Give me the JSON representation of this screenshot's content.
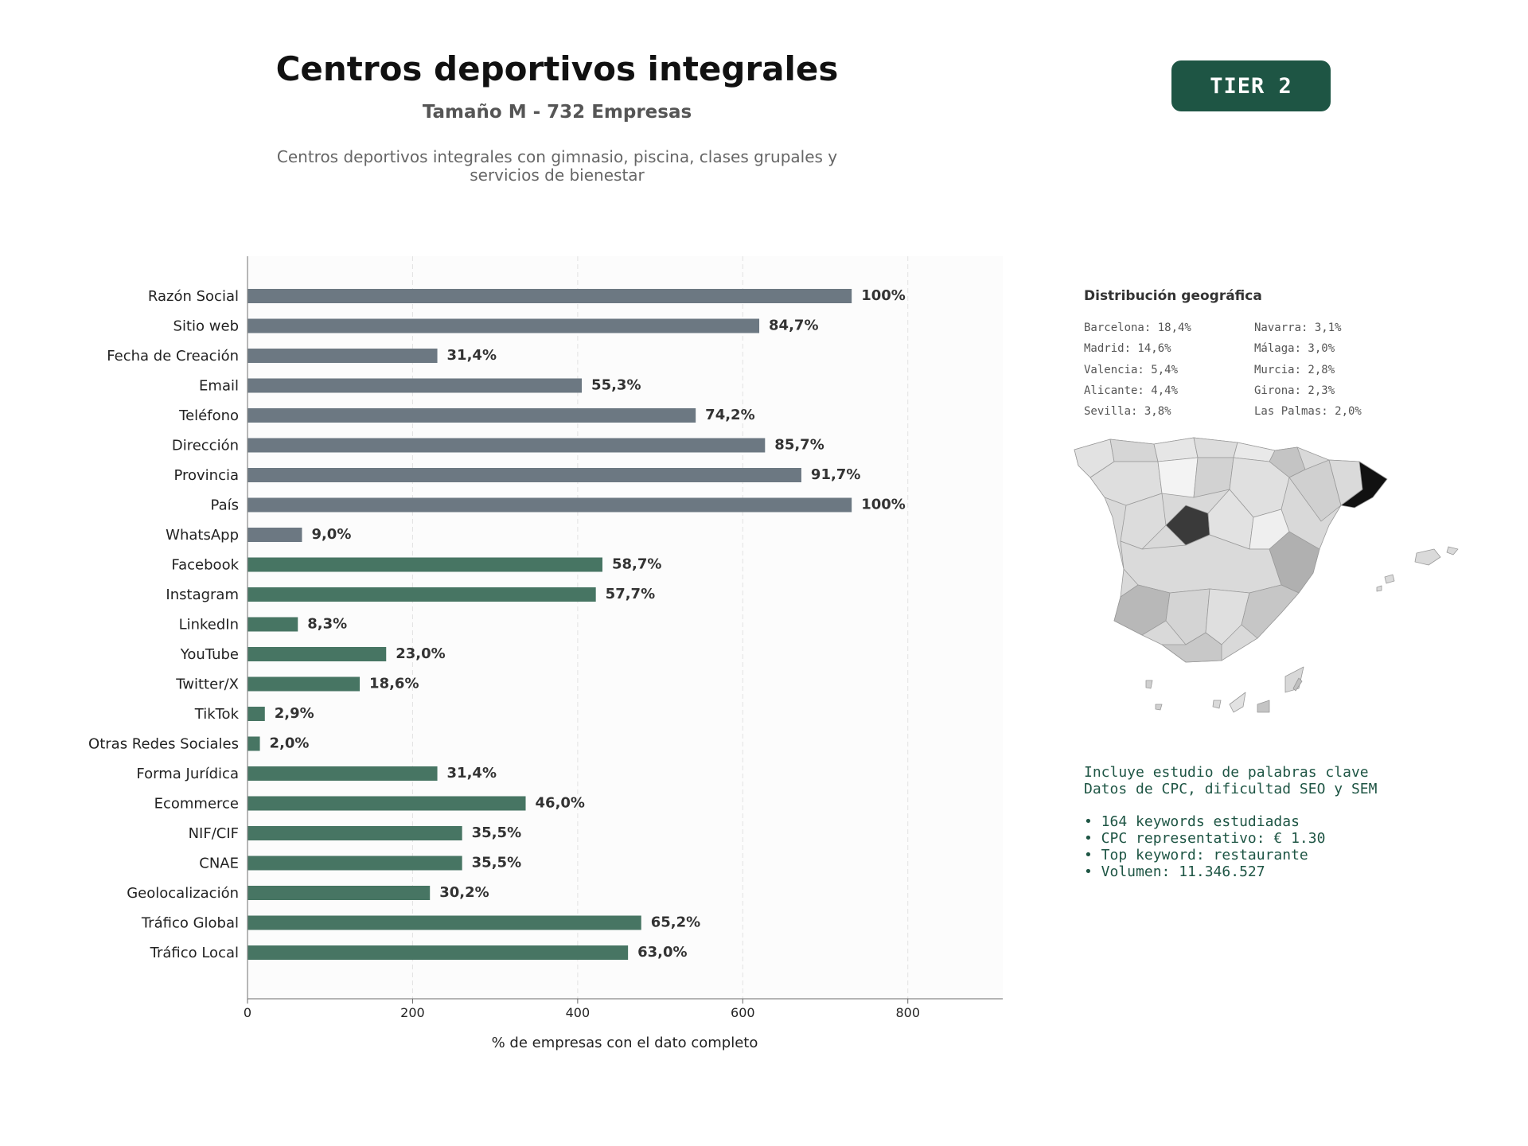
{
  "header": {
    "title": "Centros deportivos integrales",
    "subtitle": "Tamaño M - 732 Empresas",
    "description_line1": "Centros deportivos integrales con gimnasio, piscina, clases grupales y",
    "description_line2": "servicios de bienestar",
    "tier": "TIER 2"
  },
  "colors": {
    "gray_bar": "#6c7882",
    "green_bar": "#477563",
    "accent": "#1e5544"
  },
  "chart_data": {
    "type": "bar",
    "orientation": "horizontal",
    "xlabel": "% de empresas con el dato completo",
    "xlim": [
      0,
      915
    ],
    "xticks": [
      0,
      200,
      400,
      600,
      800
    ],
    "grid": "vertical dashed",
    "categories": [
      "Razón Social",
      "Sitio web",
      "Fecha de Creación",
      "Email",
      "Teléfono",
      "Dirección",
      "Provincia",
      "País",
      "WhatsApp",
      "Facebook",
      "Instagram",
      "LinkedIn",
      "YouTube",
      "Twitter/X",
      "TikTok",
      "Otras Redes Sociales",
      "Forma Jurídica",
      "Ecommerce",
      "NIF/CIF",
      "CNAE",
      "Geolocalización",
      "Tráfico Global",
      "Tráfico Local"
    ],
    "values": [
      732,
      620,
      230,
      405,
      543,
      627,
      671,
      732,
      66,
      430,
      422,
      61,
      168,
      136,
      21,
      15,
      230,
      337,
      260,
      260,
      221,
      477,
      461
    ],
    "labels": [
      "100%",
      "84,7%",
      "31,4%",
      "55,3%",
      "74,2%",
      "85,7%",
      "91,7%",
      "100%",
      "9,0%",
      "58,7%",
      "57,7%",
      "8,3%",
      "23,0%",
      "18,6%",
      "2,9%",
      "2,0%",
      "31,4%",
      "46,0%",
      "35,5%",
      "35,5%",
      "30,2%",
      "65,2%",
      "63,0%"
    ],
    "groups": [
      "gray",
      "gray",
      "gray",
      "gray",
      "gray",
      "gray",
      "gray",
      "gray",
      "gray",
      "green",
      "green",
      "green",
      "green",
      "green",
      "green",
      "green",
      "green",
      "green",
      "green",
      "green",
      "green",
      "green",
      "green"
    ]
  },
  "geo": {
    "title": "Distribución geográfica",
    "col1": [
      "Barcelona: 18,4%",
      "Madrid: 14,6%",
      "Valencia: 5,4%",
      "Alicante: 4,4%",
      "Sevilla: 3,8%"
    ],
    "col2": [
      "Navarra: 3,1%",
      "Málaga: 3,0%",
      "Murcia: 2,8%",
      "Girona: 2,3%",
      "Las Palmas: 2,0%"
    ]
  },
  "keywords": {
    "line1": "Incluye estudio de palabras clave",
    "line2": "Datos de CPC, dificultad SEO y SEM",
    "bullets": [
      "• 164 keywords estudiadas",
      "• CPC representativo: € 1.30",
      "• Top keyword: restaurante",
      "• Volumen: 11.346.527"
    ]
  }
}
